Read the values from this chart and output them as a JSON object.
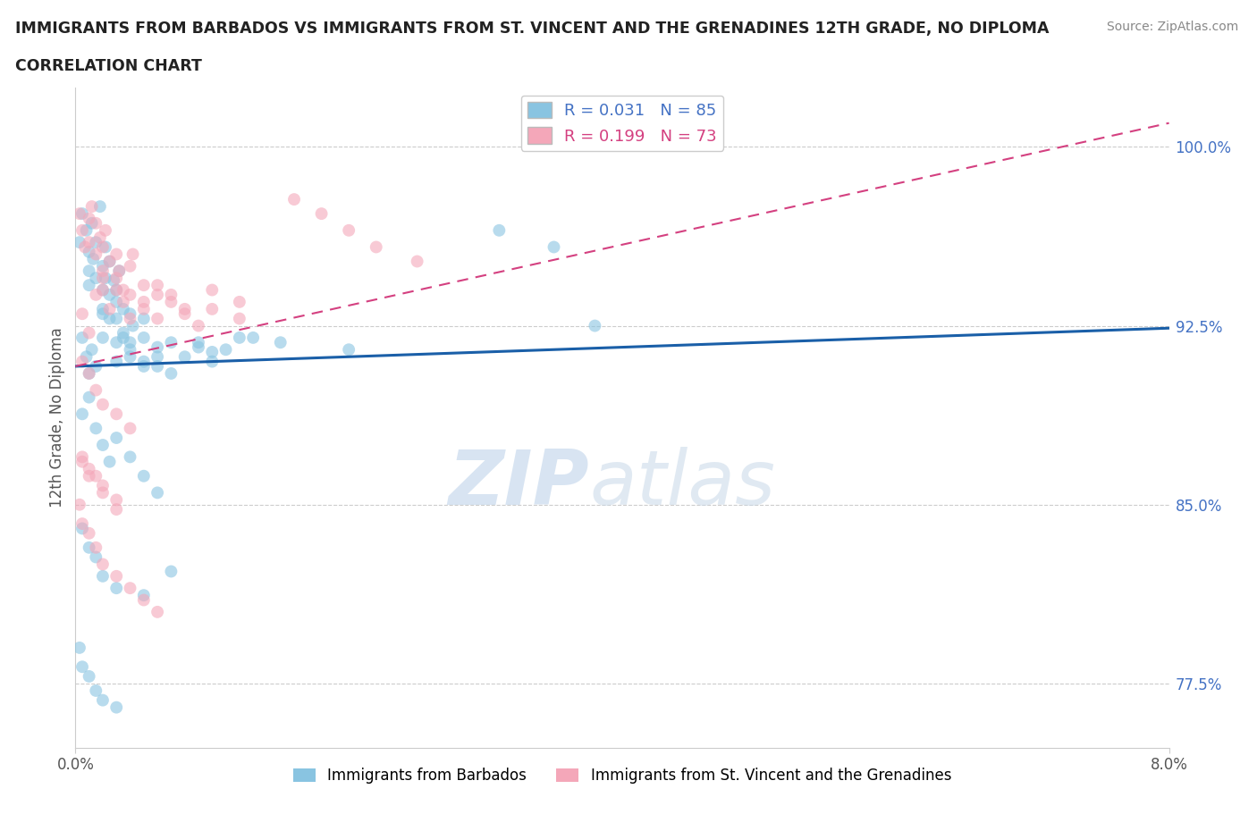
{
  "title_line1": "IMMIGRANTS FROM BARBADOS VS IMMIGRANTS FROM ST. VINCENT AND THE GRENADINES 12TH GRADE, NO DIPLOMA",
  "title_line2": "CORRELATION CHART",
  "source_text": "Source: ZipAtlas.com",
  "ylabel": "12th Grade, No Diploma",
  "xlim": [
    0.0,
    0.08
  ],
  "ylim": [
    0.748,
    1.025
  ],
  "xtick_labels": [
    "0.0%",
    "8.0%"
  ],
  "xtick_vals": [
    0.0,
    0.08
  ],
  "ytick_labels": [
    "77.5%",
    "85.0%",
    "92.5%",
    "100.0%"
  ],
  "ytick_vals": [
    0.775,
    0.85,
    0.925,
    1.0
  ],
  "r_barbados": 0.031,
  "n_barbados": 85,
  "r_vincent": 0.199,
  "n_vincent": 73,
  "color_barbados": "#89c4e1",
  "color_vincent": "#f4a7b9",
  "line_color_barbados": "#1a5fa8",
  "line_color_vincent": "#d44080",
  "watermark_zip": "ZIP",
  "watermark_atlas": "atlas",
  "legend_label_barbados": "Immigrants from Barbados",
  "legend_label_vincent": "Immigrants from St. Vincent and the Grenadines",
  "barbados_x": [
    0.0003,
    0.0005,
    0.0008,
    0.001,
    0.001,
    0.001,
    0.0012,
    0.0013,
    0.0015,
    0.0015,
    0.0018,
    0.002,
    0.002,
    0.002,
    0.0022,
    0.0022,
    0.0025,
    0.0025,
    0.0028,
    0.003,
    0.003,
    0.003,
    0.0032,
    0.0035,
    0.0035,
    0.004,
    0.004,
    0.004,
    0.0042,
    0.005,
    0.005,
    0.005,
    0.006,
    0.006,
    0.007,
    0.008,
    0.009,
    0.01,
    0.011,
    0.013,
    0.0005,
    0.0008,
    0.001,
    0.0012,
    0.0015,
    0.002,
    0.002,
    0.0025,
    0.003,
    0.003,
    0.0035,
    0.004,
    0.005,
    0.006,
    0.007,
    0.009,
    0.01,
    0.012,
    0.015,
    0.02,
    0.0005,
    0.001,
    0.0015,
    0.002,
    0.0025,
    0.003,
    0.004,
    0.005,
    0.006,
    0.0005,
    0.001,
    0.0015,
    0.002,
    0.003,
    0.005,
    0.007,
    0.031,
    0.035,
    0.038,
    0.0003,
    0.0005,
    0.001,
    0.0015,
    0.002,
    0.003
  ],
  "barbados_y": [
    0.96,
    0.972,
    0.965,
    0.956,
    0.948,
    0.942,
    0.968,
    0.953,
    0.96,
    0.945,
    0.975,
    0.95,
    0.94,
    0.932,
    0.958,
    0.945,
    0.952,
    0.938,
    0.944,
    0.935,
    0.928,
    0.94,
    0.948,
    0.932,
    0.92,
    0.93,
    0.918,
    0.912,
    0.925,
    0.92,
    0.91,
    0.928,
    0.916,
    0.908,
    0.905,
    0.912,
    0.918,
    0.91,
    0.915,
    0.92,
    0.92,
    0.912,
    0.905,
    0.915,
    0.908,
    0.93,
    0.92,
    0.928,
    0.918,
    0.91,
    0.922,
    0.915,
    0.908,
    0.912,
    0.918,
    0.916,
    0.914,
    0.92,
    0.918,
    0.915,
    0.888,
    0.895,
    0.882,
    0.875,
    0.868,
    0.878,
    0.87,
    0.862,
    0.855,
    0.84,
    0.832,
    0.828,
    0.82,
    0.815,
    0.812,
    0.822,
    0.965,
    0.958,
    0.925,
    0.79,
    0.782,
    0.778,
    0.772,
    0.768,
    0.765
  ],
  "vincent_x": [
    0.0003,
    0.0005,
    0.0007,
    0.001,
    0.001,
    0.0012,
    0.0015,
    0.0015,
    0.0018,
    0.002,
    0.002,
    0.002,
    0.0022,
    0.0025,
    0.003,
    0.003,
    0.0032,
    0.0035,
    0.004,
    0.004,
    0.0042,
    0.005,
    0.005,
    0.006,
    0.006,
    0.007,
    0.008,
    0.009,
    0.01,
    0.012,
    0.0005,
    0.001,
    0.0015,
    0.002,
    0.0025,
    0.003,
    0.0035,
    0.004,
    0.005,
    0.006,
    0.007,
    0.008,
    0.01,
    0.012,
    0.0005,
    0.001,
    0.0015,
    0.002,
    0.003,
    0.004,
    0.0005,
    0.001,
    0.0015,
    0.002,
    0.003,
    0.016,
    0.018,
    0.02,
    0.022,
    0.025,
    0.0003,
    0.0005,
    0.001,
    0.0015,
    0.002,
    0.003,
    0.004,
    0.005,
    0.006,
    0.0005,
    0.001,
    0.002,
    0.003
  ],
  "vincent_y": [
    0.972,
    0.965,
    0.958,
    0.97,
    0.96,
    0.975,
    0.968,
    0.955,
    0.962,
    0.958,
    0.948,
    0.94,
    0.965,
    0.952,
    0.945,
    0.955,
    0.948,
    0.94,
    0.95,
    0.938,
    0.955,
    0.942,
    0.932,
    0.938,
    0.928,
    0.935,
    0.93,
    0.925,
    0.932,
    0.928,
    0.93,
    0.922,
    0.938,
    0.945,
    0.932,
    0.94,
    0.935,
    0.928,
    0.935,
    0.942,
    0.938,
    0.932,
    0.94,
    0.935,
    0.91,
    0.905,
    0.898,
    0.892,
    0.888,
    0.882,
    0.87,
    0.865,
    0.862,
    0.858,
    0.852,
    0.978,
    0.972,
    0.965,
    0.958,
    0.952,
    0.85,
    0.842,
    0.838,
    0.832,
    0.825,
    0.82,
    0.815,
    0.81,
    0.805,
    0.868,
    0.862,
    0.855,
    0.848
  ]
}
